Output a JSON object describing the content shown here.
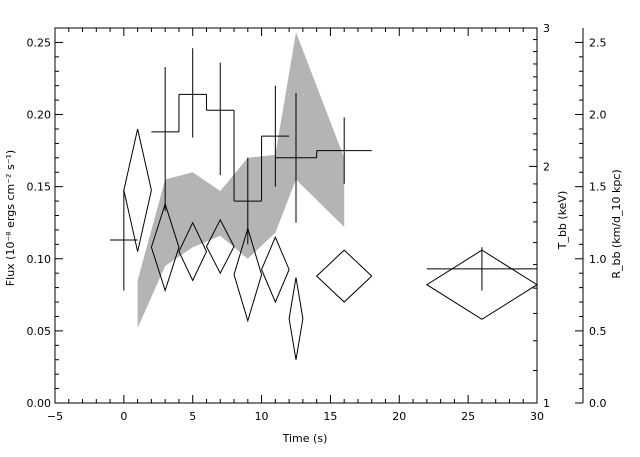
{
  "chart_data": {
    "type": "scatter",
    "title": "",
    "xlabel": "Time (s)",
    "ylabel": "Flux (10⁻⁸ ergs cm⁻² s⁻¹)",
    "xlim": [
      -5,
      30
    ],
    "ylim": [
      0,
      0.26
    ],
    "xticks": [
      -5,
      0,
      5,
      10,
      15,
      20,
      25,
      30
    ],
    "xtick_labels": [
      "−5",
      "0",
      "5",
      "10",
      "15",
      "20",
      "25",
      "30"
    ],
    "yticks": [
      0,
      0.05,
      0.1,
      0.15,
      0.2,
      0.25
    ],
    "ytick_labels": [
      "0.00",
      "0.05",
      "0.10",
      "0.15",
      "0.20",
      "0.25"
    ],
    "right_axis_1": {
      "label": "T_bb (keV)",
      "scale": "log",
      "range": [
        1,
        3
      ],
      "tick_labels": [
        "1",
        "2",
        "3"
      ]
    },
    "right_axis_2": {
      "label": "R_bb (km/d_10 kpc)",
      "range": [
        0,
        2.6
      ],
      "ticks": [
        0,
        0.5,
        1,
        1.5,
        2,
        2.5
      ],
      "tick_labels": [
        "0.0",
        "0.5",
        "1.0",
        "1.5",
        "2.0",
        "2.5"
      ]
    },
    "flux_series": [
      {
        "x": 0,
        "xerr": 1,
        "y": 0.113,
        "yerr_lo": 0.035,
        "yerr_hi": 0.035
      },
      {
        "x": 3,
        "xerr": 1,
        "y": 0.188,
        "yerr_lo": 0.055,
        "yerr_hi": 0.045
      },
      {
        "x": 5,
        "xerr": 1,
        "y": 0.214,
        "yerr_lo": 0.03,
        "yerr_hi": 0.032
      },
      {
        "x": 7,
        "xerr": 1,
        "y": 0.203,
        "yerr_lo": 0.045,
        "yerr_hi": 0.033
      },
      {
        "x": 9,
        "xerr": 1,
        "y": 0.14,
        "yerr_lo": 0.03,
        "yerr_hi": 0.03
      },
      {
        "x": 11,
        "xerr": 1,
        "y": 0.185,
        "yerr_lo": 0.035,
        "yerr_hi": 0.035
      },
      {
        "x": 12.5,
        "xerr": 1.5,
        "y": 0.17,
        "yerr_lo": 0.045,
        "yerr_hi": 0.045
      },
      {
        "x": 16,
        "xerr": 2,
        "y": 0.175,
        "yerr_lo": 0.023,
        "yerr_hi": 0.023
      },
      {
        "x": 26,
        "xerr": 4,
        "y": 0.093,
        "yerr_lo": 0.015,
        "yerr_hi": 0.015
      }
    ],
    "temperature_diamonds": [
      {
        "x": 1,
        "dx": 1,
        "y_lo": 0.105,
        "y_hi": 0.19
      },
      {
        "x": 3,
        "dx": 1,
        "y_lo": 0.078,
        "y_hi": 0.138
      },
      {
        "x": 5,
        "dx": 1,
        "y_lo": 0.085,
        "y_hi": 0.125
      },
      {
        "x": 7,
        "dx": 1,
        "y_lo": 0.09,
        "y_hi": 0.127
      },
      {
        "x": 9,
        "dx": 1,
        "y_lo": 0.057,
        "y_hi": 0.121
      },
      {
        "x": 11,
        "dx": 1,
        "y_lo": 0.07,
        "y_hi": 0.115
      },
      {
        "x": 12.5,
        "dx": 0.5,
        "y_lo": 0.03,
        "y_hi": 0.087
      },
      {
        "x": 16,
        "dx": 2,
        "y_lo": 0.07,
        "y_hi": 0.106
      },
      {
        "x": 26,
        "dx": 4,
        "y_lo": 0.058,
        "y_hi": 0.106
      }
    ],
    "radius_band": {
      "x": [
        1,
        3,
        5,
        7,
        9,
        11,
        12.5,
        16
      ],
      "lower": [
        0.052,
        0.095,
        0.108,
        0.116,
        0.1,
        0.118,
        0.155,
        0.122
      ],
      "upper": [
        0.085,
        0.155,
        0.16,
        0.147,
        0.17,
        0.172,
        0.257,
        0.17
      ]
    },
    "band_color": "#b4b4b4",
    "line_color": "#000000"
  }
}
